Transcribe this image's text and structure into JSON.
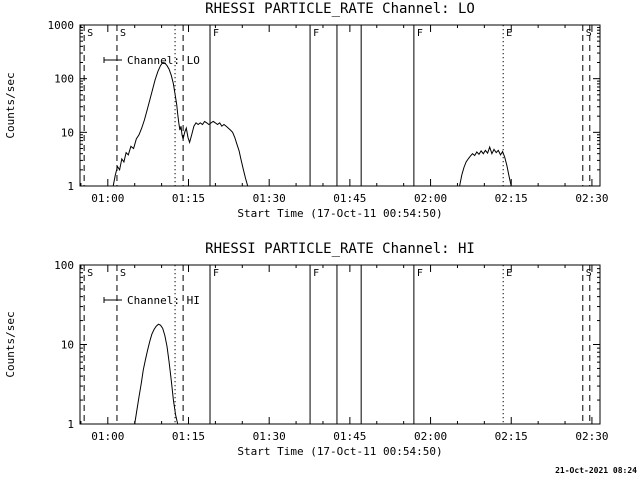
{
  "page": {
    "bg": "#ffffff",
    "fg": "#000000",
    "timestamp": "21-Oct-2021 08:24"
  },
  "chart_data": [
    {
      "type": "line",
      "title": "RHESSI PARTICLE_RATE Channel: LO",
      "xlabel": "Start Time (17-Oct-11 00:54:50)",
      "ylabel": "Counts/sec",
      "yscale": "log",
      "ylim": [
        1,
        1000
      ],
      "ytick_values": [
        1,
        10,
        100,
        1000
      ],
      "ytick_labels": [
        "1",
        "10",
        "100",
        "1000"
      ],
      "xlim_minutes": [
        54.83,
        151.5
      ],
      "x_minor_step_min": 5,
      "xticks": [
        {
          "label": "01:00",
          "min": 60
        },
        {
          "label": "01:15",
          "min": 75
        },
        {
          "label": "01:30",
          "min": 90
        },
        {
          "label": "01:45",
          "min": 105
        },
        {
          "label": "02:00",
          "min": 120
        },
        {
          "label": "02:15",
          "min": 135
        },
        {
          "label": "02:30",
          "min": 150
        }
      ],
      "legend": {
        "label": "Channel: LO"
      },
      "events": [
        {
          "min": 55.6,
          "style": "dashed",
          "label": "S"
        },
        {
          "min": 61.7,
          "style": "dashed",
          "label": "S"
        },
        {
          "min": 72.5,
          "style": "dotted",
          "label": ""
        },
        {
          "min": 74.0,
          "style": "dashed",
          "label": ""
        },
        {
          "min": 79.0,
          "style": "solid",
          "label": "F"
        },
        {
          "min": 97.6,
          "style": "solid",
          "label": "F"
        },
        {
          "min": 102.6,
          "style": "solid",
          "label": ""
        },
        {
          "min": 107.1,
          "style": "solid",
          "label": ""
        },
        {
          "min": 116.9,
          "style": "solid",
          "label": "F"
        },
        {
          "min": 133.5,
          "style": "dotted",
          "label": "E"
        },
        {
          "min": 148.3,
          "style": "dashed",
          "label": "S"
        },
        {
          "min": 149.6,
          "style": "dashed",
          "label": ""
        }
      ],
      "series": [
        {
          "name": "Channel: LO",
          "segments": [
            [
              [
                61.0,
                1
              ],
              [
                61.4,
                1.6
              ],
              [
                61.8,
                2.3
              ],
              [
                62.2,
                2.0
              ],
              [
                62.6,
                3.2
              ],
              [
                63.0,
                2.8
              ],
              [
                63.4,
                4.2
              ],
              [
                63.8,
                3.8
              ],
              [
                64.3,
                5.5
              ],
              [
                64.8,
                5.0
              ],
              [
                65.3,
                7.5
              ],
              [
                65.8,
                9
              ],
              [
                66.3,
                12
              ],
              [
                66.8,
                17
              ],
              [
                67.3,
                26
              ],
              [
                67.8,
                40
              ],
              [
                68.3,
                62
              ],
              [
                68.8,
                95
              ],
              [
                69.3,
                135
              ],
              [
                69.8,
                175
              ],
              [
                70.2,
                200
              ],
              [
                70.6,
                195
              ],
              [
                71.0,
                175
              ],
              [
                71.4,
                150
              ],
              [
                71.8,
                115
              ],
              [
                72.2,
                80
              ],
              [
                72.5,
                52
              ],
              [
                72.8,
                33
              ],
              [
                73.0,
                22
              ],
              [
                73.2,
                15
              ],
              [
                73.4,
                11
              ],
              [
                73.6,
                13
              ],
              [
                73.8,
                9
              ],
              [
                74.0,
                7.5
              ],
              [
                74.3,
                10
              ],
              [
                74.6,
                12
              ],
              [
                74.9,
                8
              ],
              [
                75.2,
                6.5
              ],
              [
                75.6,
                9
              ],
              [
                76.0,
                13
              ],
              [
                76.4,
                15
              ],
              [
                76.8,
                14
              ],
              [
                77.2,
                15
              ],
              [
                77.6,
                14
              ],
              [
                78.0,
                16
              ],
              [
                78.4,
                15
              ],
              [
                78.8,
                14
              ],
              [
                79.2,
                15
              ],
              [
                79.6,
                16
              ],
              [
                80.0,
                15
              ],
              [
                80.4,
                14
              ],
              [
                80.8,
                15
              ],
              [
                81.2,
                13
              ],
              [
                81.6,
                14
              ],
              [
                82.0,
                13
              ],
              [
                82.4,
                12
              ],
              [
                82.8,
                11
              ],
              [
                83.2,
                10
              ],
              [
                83.6,
                8
              ],
              [
                84.0,
                6
              ],
              [
                84.4,
                4.5
              ],
              [
                84.8,
                3
              ],
              [
                85.2,
                2
              ],
              [
                85.6,
                1.4
              ],
              [
                86.0,
                1
              ]
            ],
            [
              [
                125.4,
                1
              ],
              [
                125.8,
                1.6
              ],
              [
                126.2,
                2.2
              ],
              [
                126.6,
                2.8
              ],
              [
                127.0,
                3.2
              ],
              [
                127.4,
                3.6
              ],
              [
                127.8,
                4.0
              ],
              [
                128.2,
                3.7
              ],
              [
                128.6,
                4.3
              ],
              [
                129.0,
                3.9
              ],
              [
                129.4,
                4.5
              ],
              [
                129.8,
                4.0
              ],
              [
                130.2,
                4.6
              ],
              [
                130.6,
                4.1
              ],
              [
                131.0,
                5.3
              ],
              [
                131.4,
                4.0
              ],
              [
                131.8,
                4.8
              ],
              [
                132.2,
                4.2
              ],
              [
                132.6,
                4.6
              ],
              [
                133.0,
                3.8
              ],
              [
                133.4,
                4.4
              ],
              [
                133.8,
                3.4
              ],
              [
                134.2,
                2.4
              ],
              [
                134.6,
                1.5
              ],
              [
                135.0,
                1
              ]
            ]
          ]
        }
      ]
    },
    {
      "type": "line",
      "title": "RHESSI PARTICLE_RATE Channel: HI",
      "xlabel": "Start Time (17-Oct-11 00:54:50)",
      "ylabel": "Counts/sec",
      "yscale": "log",
      "ylim": [
        1,
        100
      ],
      "ytick_values": [
        1,
        10,
        100
      ],
      "ytick_labels": [
        "1",
        "10",
        "100"
      ],
      "xlim_minutes": [
        54.83,
        151.5
      ],
      "x_minor_step_min": 5,
      "xticks": [
        {
          "label": "01:00",
          "min": 60
        },
        {
          "label": "01:15",
          "min": 75
        },
        {
          "label": "01:30",
          "min": 90
        },
        {
          "label": "01:45",
          "min": 105
        },
        {
          "label": "02:00",
          "min": 120
        },
        {
          "label": "02:15",
          "min": 135
        },
        {
          "label": "02:30",
          "min": 150
        }
      ],
      "legend": {
        "label": "Channel: HI"
      },
      "events": [
        {
          "min": 55.6,
          "style": "dashed",
          "label": "S"
        },
        {
          "min": 61.7,
          "style": "dashed",
          "label": "S"
        },
        {
          "min": 72.5,
          "style": "dotted",
          "label": ""
        },
        {
          "min": 74.0,
          "style": "dashed",
          "label": ""
        },
        {
          "min": 79.0,
          "style": "solid",
          "label": "F"
        },
        {
          "min": 97.6,
          "style": "solid",
          "label": "F"
        },
        {
          "min": 102.6,
          "style": "solid",
          "label": ""
        },
        {
          "min": 107.1,
          "style": "solid",
          "label": ""
        },
        {
          "min": 116.9,
          "style": "solid",
          "label": "F"
        },
        {
          "min": 133.5,
          "style": "dotted",
          "label": "E"
        },
        {
          "min": 148.3,
          "style": "dashed",
          "label": "S"
        },
        {
          "min": 149.6,
          "style": "dashed",
          "label": ""
        }
      ],
      "series": [
        {
          "name": "Channel: HI",
          "segments": [
            [
              [
                65.0,
                1
              ],
              [
                65.4,
                1.5
              ],
              [
                65.8,
                2.2
              ],
              [
                66.2,
                3.2
              ],
              [
                66.6,
                4.8
              ],
              [
                67.0,
                6.5
              ],
              [
                67.4,
                8.5
              ],
              [
                67.8,
                11
              ],
              [
                68.2,
                13.5
              ],
              [
                68.6,
                15.5
              ],
              [
                69.0,
                17
              ],
              [
                69.4,
                18
              ],
              [
                69.8,
                17.5
              ],
              [
                70.2,
                16
              ],
              [
                70.6,
                13
              ],
              [
                71.0,
                9.5
              ],
              [
                71.4,
                6
              ],
              [
                71.8,
                3.5
              ],
              [
                72.2,
                2.0
              ],
              [
                72.6,
                1.3
              ],
              [
                73.0,
                1
              ]
            ]
          ]
        }
      ]
    }
  ]
}
